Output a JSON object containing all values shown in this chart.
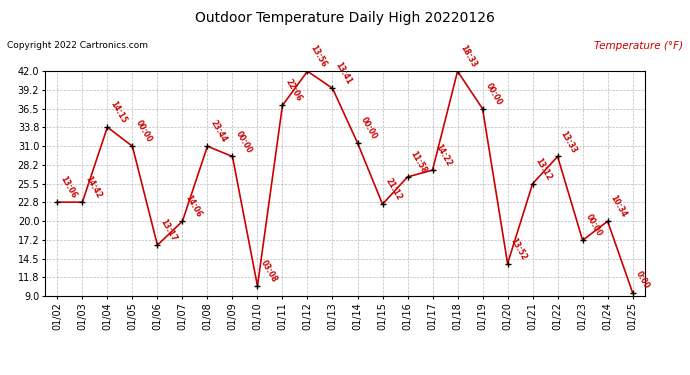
{
  "title": "Outdoor Temperature Daily High 20220126",
  "copyright": "Copyright 2022 Cartronics.com",
  "ylabel": "Temperature (°F)",
  "ylim": [
    9.0,
    42.0
  ],
  "yticks": [
    9.0,
    11.8,
    14.5,
    17.2,
    20.0,
    22.8,
    25.5,
    28.2,
    31.0,
    33.8,
    36.5,
    39.2,
    42.0
  ],
  "dates": [
    "01/02",
    "01/03",
    "01/04",
    "01/05",
    "01/06",
    "01/07",
    "01/08",
    "01/09",
    "01/10",
    "01/11",
    "01/12",
    "01/13",
    "01/14",
    "01/15",
    "01/16",
    "01/17",
    "01/18",
    "01/19",
    "01/20",
    "01/21",
    "01/22",
    "01/23",
    "01/24",
    "01/25"
  ],
  "temperatures": [
    22.8,
    22.8,
    33.8,
    31.0,
    16.5,
    20.0,
    31.0,
    29.5,
    10.5,
    37.0,
    42.0,
    39.5,
    31.5,
    22.5,
    26.5,
    27.5,
    42.0,
    36.5,
    13.8,
    25.5,
    29.5,
    17.2,
    20.0,
    9.5
  ],
  "time_labels": [
    "13:06",
    "14:42",
    "14:15",
    "00:00",
    "13:17",
    "14:06",
    "23:44",
    "00:00",
    "03:08",
    "22:06",
    "13:56",
    "13:41",
    "00:00",
    "21:12",
    "11:58",
    "14:22",
    "18:33",
    "00:00",
    "13:52",
    "13:12",
    "13:33",
    "00:00",
    "10:34",
    "0:00"
  ],
  "line_color": "#cc0000",
  "marker_color": "#000000",
  "background_color": "#ffffff",
  "grid_color": "#aaaaaa",
  "title_color": "#000000",
  "label_color": "#cc0000",
  "copyright_color": "#000000"
}
